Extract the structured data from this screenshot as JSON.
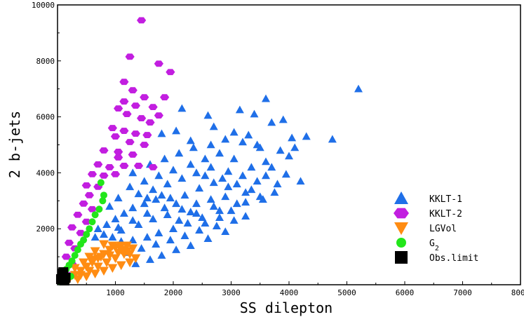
{
  "chart_data": {
    "type": "scatter",
    "title": "",
    "xlabel": "SS dilepton",
    "ylabel": "2 b-jets",
    "xlim": [
      0,
      8000
    ],
    "ylim": [
      0,
      10000
    ],
    "xticks": [
      "1000",
      "2000",
      "3000",
      "4000",
      "5000",
      "6000",
      "7000",
      "8000"
    ],
    "yticks": [
      "2000",
      "4000",
      "6000",
      "8000",
      "10000"
    ],
    "legend_position": "bottom-right",
    "series": [
      {
        "name": "KKLT-1",
        "marker": "triangle-up",
        "color": "#1f6fe8",
        "points": [
          [
            5200,
            7000
          ],
          [
            3600,
            6650
          ],
          [
            4750,
            5200
          ],
          [
            4300,
            5300
          ],
          [
            4050,
            5250
          ],
          [
            3900,
            5900
          ],
          [
            3400,
            6100
          ],
          [
            3150,
            6250
          ],
          [
            2600,
            6050
          ],
          [
            2150,
            6300
          ],
          [
            1800,
            5400
          ],
          [
            2050,
            5500
          ],
          [
            2300,
            5150
          ],
          [
            2700,
            5650
          ],
          [
            3050,
            5450
          ],
          [
            3300,
            5350
          ],
          [
            3700,
            5800
          ],
          [
            3500,
            4900
          ],
          [
            3850,
            4800
          ],
          [
            4000,
            4600
          ],
          [
            3600,
            4400
          ],
          [
            4200,
            3700
          ],
          [
            3950,
            3950
          ],
          [
            3750,
            3300
          ],
          [
            3500,
            3150
          ],
          [
            3250,
            3300
          ],
          [
            2950,
            3500
          ],
          [
            2700,
            3650
          ],
          [
            2450,
            3450
          ],
          [
            2200,
            3200
          ],
          [
            1950,
            3100
          ],
          [
            1700,
            3050
          ],
          [
            1500,
            2900
          ],
          [
            1300,
            2750
          ],
          [
            1150,
            2550
          ],
          [
            1000,
            2350
          ],
          [
            850,
            2150
          ],
          [
            700,
            2000
          ],
          [
            1100,
            1950
          ],
          [
            1400,
            2150
          ],
          [
            1650,
            2350
          ],
          [
            1900,
            2500
          ],
          [
            2150,
            2700
          ],
          [
            2400,
            2900
          ],
          [
            2650,
            3050
          ],
          [
            2900,
            3150
          ],
          [
            3100,
            2900
          ],
          [
            2800,
            2650
          ],
          [
            2500,
            2400
          ],
          [
            2250,
            2200
          ],
          [
            2000,
            2000
          ],
          [
            1750,
            1850
          ],
          [
            1550,
            1700
          ],
          [
            1300,
            1600
          ],
          [
            1100,
            1550
          ],
          [
            950,
            1700
          ],
          [
            1200,
            1150
          ],
          [
            1450,
            1300
          ],
          [
            1700,
            1450
          ],
          [
            1950,
            1600
          ],
          [
            2200,
            1750
          ],
          [
            2450,
            1950
          ],
          [
            2750,
            2100
          ],
          [
            3050,
            2300
          ],
          [
            3250,
            2450
          ],
          [
            2900,
            1900
          ],
          [
            2600,
            1650
          ],
          [
            2300,
            1400
          ],
          [
            2050,
            1250
          ],
          [
            1800,
            1050
          ],
          [
            1600,
            900
          ],
          [
            1350,
            750
          ],
          [
            1250,
            3500
          ],
          [
            1500,
            3700
          ],
          [
            1750,
            3900
          ],
          [
            2000,
            4100
          ],
          [
            2300,
            4300
          ],
          [
            2550,
            4500
          ],
          [
            2800,
            4700
          ],
          [
            3050,
            4500
          ],
          [
            3350,
            4200
          ],
          [
            3600,
            3900
          ],
          [
            3800,
            3600
          ],
          [
            3450,
            3700
          ],
          [
            3200,
            3900
          ],
          [
            2950,
            4050
          ],
          [
            2650,
            4200
          ],
          [
            2400,
            4000
          ],
          [
            2150,
            3800
          ],
          [
            1900,
            3600
          ],
          [
            1650,
            3400
          ],
          [
            1400,
            3250
          ],
          [
            1600,
            4300
          ],
          [
            1850,
            4500
          ],
          [
            2100,
            4700
          ],
          [
            2350,
            4900
          ],
          [
            2650,
            5000
          ],
          [
            2900,
            5200
          ],
          [
            3200,
            5100
          ],
          [
            3450,
            5000
          ],
          [
            1300,
            4000
          ],
          [
            1050,
            3100
          ],
          [
            900,
            2800
          ],
          [
            2550,
            3900
          ],
          [
            2850,
            3800
          ],
          [
            3100,
            3600
          ],
          [
            3350,
            3400
          ],
          [
            2100,
            2300
          ],
          [
            2400,
            2550
          ],
          [
            2700,
            2800
          ],
          [
            1850,
            2750
          ],
          [
            1550,
            2550
          ],
          [
            1300,
            2300
          ],
          [
            1050,
            2050
          ],
          [
            800,
            1800
          ],
          [
            650,
            1700
          ],
          [
            2550,
            2200
          ],
          [
            2800,
            2400
          ],
          [
            3000,
            2650
          ],
          [
            2300,
            2600
          ],
          [
            2050,
            2900
          ],
          [
            1800,
            3200
          ],
          [
            1550,
            3100
          ],
          [
            3250,
            2950
          ],
          [
            3550,
            3050
          ],
          [
            3700,
            4200
          ],
          [
            4100,
            4900
          ]
        ]
      },
      {
        "name": "KKLT-2",
        "marker": "hexagon",
        "color": "#c21ee0",
        "points": [
          [
            1450,
            9450
          ],
          [
            1250,
            8150
          ],
          [
            1750,
            7900
          ],
          [
            1950,
            7600
          ],
          [
            1150,
            7250
          ],
          [
            1300,
            6950
          ],
          [
            1850,
            6700
          ],
          [
            1500,
            6700
          ],
          [
            1150,
            6550
          ],
          [
            1350,
            6400
          ],
          [
            1650,
            6350
          ],
          [
            1050,
            6300
          ],
          [
            1200,
            6100
          ],
          [
            1450,
            5950
          ],
          [
            1750,
            6050
          ],
          [
            1600,
            5800
          ],
          [
            950,
            5600
          ],
          [
            1150,
            5500
          ],
          [
            1350,
            5400
          ],
          [
            1550,
            5350
          ],
          [
            1000,
            5300
          ],
          [
            1250,
            5100
          ],
          [
            1500,
            5000
          ],
          [
            800,
            4800
          ],
          [
            1050,
            4750
          ],
          [
            1300,
            4650
          ],
          [
            1050,
            4550
          ],
          [
            700,
            4300
          ],
          [
            900,
            4200
          ],
          [
            1150,
            4250
          ],
          [
            1400,
            4250
          ],
          [
            1650,
            4200
          ],
          [
            600,
            3950
          ],
          [
            800,
            3900
          ],
          [
            1000,
            3950
          ],
          [
            500,
            3550
          ],
          [
            700,
            3500
          ],
          [
            550,
            3200
          ],
          [
            450,
            2900
          ],
          [
            600,
            2700
          ],
          [
            350,
            2500
          ],
          [
            500,
            2250
          ],
          [
            250,
            2050
          ],
          [
            400,
            1850
          ],
          [
            200,
            1500
          ],
          [
            300,
            1300
          ],
          [
            150,
            1000
          ],
          [
            250,
            750
          ],
          [
            100,
            500
          ],
          [
            180,
            350
          ]
        ]
      },
      {
        "name": "LGVol",
        "marker": "triangle-down",
        "color": "#ff8c12",
        "points": [
          [
            200,
            200
          ],
          [
            300,
            350
          ],
          [
            400,
            500
          ],
          [
            500,
            650
          ],
          [
            600,
            800
          ],
          [
            700,
            950
          ],
          [
            800,
            1100
          ],
          [
            900,
            1250
          ],
          [
            1000,
            1350
          ],
          [
            1100,
            1400
          ],
          [
            1200,
            1400
          ],
          [
            1300,
            1300
          ],
          [
            1150,
            1100
          ],
          [
            1000,
            950
          ],
          [
            850,
            800
          ],
          [
            700,
            650
          ],
          [
            550,
            500
          ],
          [
            400,
            350
          ],
          [
            650,
            1200
          ],
          [
            800,
            1450
          ],
          [
            950,
            1400
          ],
          [
            1100,
            1250
          ],
          [
            1250,
            1100
          ],
          [
            1350,
            950
          ],
          [
            1250,
            800
          ],
          [
            1100,
            700
          ],
          [
            950,
            600
          ],
          [
            800,
            500
          ],
          [
            650,
            400
          ],
          [
            500,
            300
          ],
          [
            350,
            200
          ],
          [
            600,
            900
          ],
          [
            750,
            1000
          ],
          [
            900,
            1050
          ],
          [
            1050,
            1150
          ],
          [
            1200,
            1200
          ],
          [
            450,
            800
          ],
          [
            550,
            1000
          ],
          [
            300,
            600
          ]
        ]
      },
      {
        "name": "G2",
        "marker": "circle",
        "color": "#22e61a",
        "points": [
          [
            750,
            3650
          ],
          [
            800,
            3200
          ],
          [
            780,
            3000
          ],
          [
            720,
            2700
          ],
          [
            650,
            2500
          ],
          [
            600,
            2250
          ],
          [
            550,
            2000
          ],
          [
            500,
            1800
          ],
          [
            450,
            1600
          ],
          [
            400,
            1450
          ],
          [
            350,
            1250
          ],
          [
            300,
            1050
          ],
          [
            250,
            850
          ],
          [
            200,
            700
          ],
          [
            150,
            550
          ],
          [
            100,
            400
          ],
          [
            60,
            250
          ],
          [
            40,
            100
          ],
          [
            120,
            150
          ],
          [
            230,
            300
          ]
        ]
      },
      {
        "name": "Obs.limit",
        "marker": "square",
        "color": "#000000",
        "points": [
          [
            60,
            200
          ],
          [
            100,
            450
          ],
          [
            140,
            250
          ],
          [
            80,
            400
          ],
          [
            120,
            150
          ]
        ]
      }
    ],
    "legend": [
      {
        "label": "KKLT-1"
      },
      {
        "label": "KKLT-2"
      },
      {
        "label": "LGVol"
      },
      {
        "label": "G",
        "sub": "2"
      },
      {
        "label": "Obs.limit"
      }
    ]
  }
}
